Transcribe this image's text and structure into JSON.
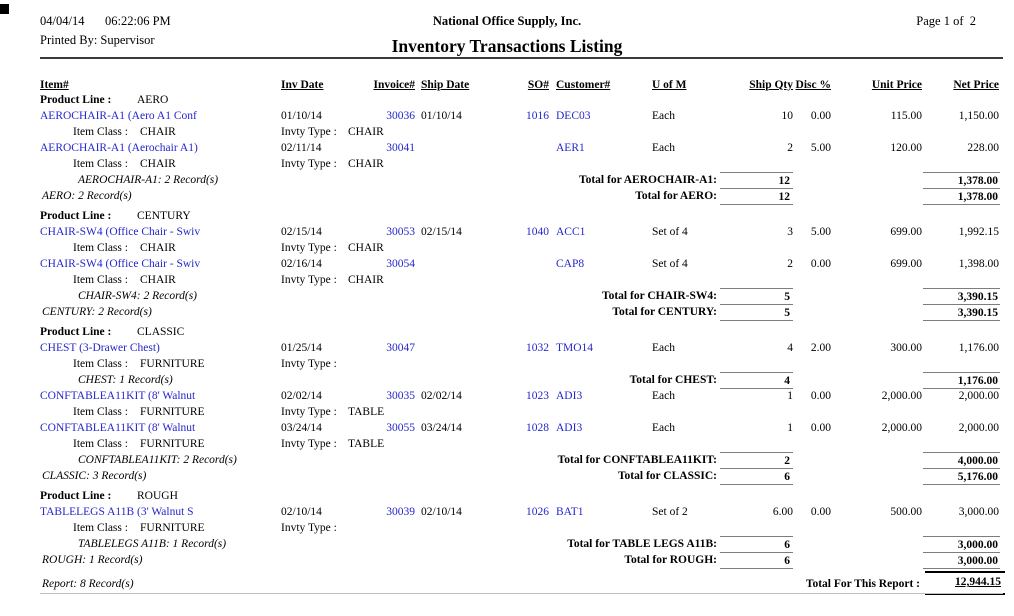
{
  "header": {
    "date": "04/04/14",
    "time": "06:22:06 PM",
    "printed_by": "Printed By: Supervisor",
    "company": "National Office Supply, Inc.",
    "page_label": "Page 1 of  2",
    "title": "Inventory Transactions Listing"
  },
  "columns": {
    "item": "Item#",
    "inv_date": "Inv Date",
    "invoice": "Invoice#",
    "ship_date": "Ship Date",
    "so": "SO#",
    "customer": "Customer#",
    "uom": "U of M",
    "ship_qty": "Ship Qty",
    "disc": "Disc %",
    "unit_price": "Unit Price",
    "net_price": "Net Price"
  },
  "lines": [
    {
      "type": "product_line",
      "label": "Product Line :",
      "value": "AERO"
    },
    {
      "type": "item",
      "item": "AEROCHAIR-A1 (Aero A1 Conf",
      "inv_date": "01/10/14",
      "invoice": "30036",
      "ship_date": "01/10/14",
      "so": "1016",
      "customer": "DEC03",
      "uom": "Each",
      "qty": "10",
      "disc": "0.00",
      "unit": "115.00",
      "net": "1,150.00"
    },
    {
      "type": "item_class",
      "class_label": "Item Class :",
      "class_value": "CHAIR",
      "invty_label": "Invty Type :",
      "invty_value": "CHAIR"
    },
    {
      "type": "item",
      "item": "AEROCHAIR-A1 (Aerochair A1)",
      "inv_date": "02/11/14",
      "invoice": "30041",
      "ship_date": "",
      "so": "",
      "customer": "AER1",
      "uom": "Each",
      "qty": "2",
      "disc": "5.00",
      "unit": "120.00",
      "net": "228.00"
    },
    {
      "type": "item_class",
      "class_label": "Item Class :",
      "class_value": "CHAIR",
      "invty_label": "Invty Type :",
      "invty_value": "CHAIR"
    },
    {
      "type": "total",
      "level": "item",
      "records": "AEROCHAIR-A1: 2 Record(s)",
      "label": "Total for AEROCHAIR-A1:",
      "qty": "12",
      "net": "1,378.00"
    },
    {
      "type": "total",
      "level": "group",
      "records": "AERO: 2 Record(s)",
      "label": "Total for AERO:",
      "qty": "12",
      "net": "1,378.00"
    },
    {
      "type": "product_line",
      "label": "Product Line :",
      "value": "CENTURY"
    },
    {
      "type": "item",
      "item": "CHAIR-SW4 (Office Chair - Swiv",
      "inv_date": "02/15/14",
      "invoice": "30053",
      "ship_date": "02/15/14",
      "so": "1040",
      "customer": "ACC1",
      "uom": "Set of 4",
      "qty": "3",
      "disc": "5.00",
      "unit": "699.00",
      "net": "1,992.15"
    },
    {
      "type": "item_class",
      "class_label": "Item Class :",
      "class_value": "CHAIR",
      "invty_label": "Invty Type :",
      "invty_value": "CHAIR"
    },
    {
      "type": "item",
      "item": "CHAIR-SW4 (Office Chair - Swiv",
      "inv_date": "02/16/14",
      "invoice": "30054",
      "ship_date": "",
      "so": "",
      "customer": "CAP8",
      "uom": "Set of 4",
      "qty": "2",
      "disc": "0.00",
      "unit": "699.00",
      "net": "1,398.00"
    },
    {
      "type": "item_class",
      "class_label": "Item Class :",
      "class_value": "CHAIR",
      "invty_label": "Invty Type :",
      "invty_value": "CHAIR"
    },
    {
      "type": "total",
      "level": "item",
      "records": "CHAIR-SW4: 2 Record(s)",
      "label": "Total for CHAIR-SW4:",
      "qty": "5",
      "net": "3,390.15"
    },
    {
      "type": "total",
      "level": "group",
      "records": "CENTURY: 2 Record(s)",
      "label": "Total for CENTURY:",
      "qty": "5",
      "net": "3,390.15"
    },
    {
      "type": "product_line",
      "label": "Product Line :",
      "value": "CLASSIC"
    },
    {
      "type": "item",
      "item": "CHEST (3-Drawer Chest)",
      "inv_date": "01/25/14",
      "invoice": "30047",
      "ship_date": "",
      "so": "1032",
      "customer": "TMO14",
      "uom": "Each",
      "qty": "4",
      "disc": "2.00",
      "unit": "300.00",
      "net": "1,176.00"
    },
    {
      "type": "item_class",
      "class_label": "Item Class :",
      "class_value": "FURNITURE",
      "invty_label": "Invty Type :",
      "invty_value": ""
    },
    {
      "type": "total",
      "level": "item",
      "records": "CHEST: 1 Record(s)",
      "label": "Total for CHEST:",
      "qty": "4",
      "net": "1,176.00"
    },
    {
      "type": "item",
      "item": "CONFTABLEA11KIT (8' Walnut",
      "inv_date": "02/02/14",
      "invoice": "30035",
      "ship_date": "02/02/14",
      "so": "1023",
      "customer": "ADI3",
      "uom": "Each",
      "qty": "1",
      "disc": "0.00",
      "unit": "2,000.00",
      "net": "2,000.00"
    },
    {
      "type": "item_class",
      "class_label": "Item Class :",
      "class_value": "FURNITURE",
      "invty_label": "Invty Type :",
      "invty_value": "TABLE"
    },
    {
      "type": "item",
      "item": "CONFTABLEA11KIT (8' Walnut",
      "inv_date": "03/24/14",
      "invoice": "30055",
      "ship_date": "03/24/14",
      "so": "1028",
      "customer": "ADI3",
      "uom": "Each",
      "qty": "1",
      "disc": "0.00",
      "unit": "2,000.00",
      "net": "2,000.00"
    },
    {
      "type": "item_class",
      "class_label": "Item Class :",
      "class_value": "FURNITURE",
      "invty_label": "Invty Type :",
      "invty_value": "TABLE"
    },
    {
      "type": "total",
      "level": "item",
      "records": "CONFTABLEA11KIT: 2 Record(s)",
      "label": "Total for CONFTABLEA11KIT:",
      "qty": "2",
      "net": "4,000.00"
    },
    {
      "type": "total",
      "level": "group",
      "records": "CLASSIC: 3 Record(s)",
      "label": "Total for CLASSIC:",
      "qty": "6",
      "net": "5,176.00"
    },
    {
      "type": "product_line",
      "label": "Product Line :",
      "value": "ROUGH"
    },
    {
      "type": "item",
      "item": "TABLELEGS A11B (3' Walnut S",
      "inv_date": "02/10/14",
      "invoice": "30039",
      "ship_date": "02/10/14",
      "so": "1026",
      "customer": "BAT1",
      "uom": "Set of 2",
      "qty": "6.00",
      "disc": "0.00",
      "unit": "500.00",
      "net": "3,000.00"
    },
    {
      "type": "item_class",
      "class_label": "Item Class :",
      "class_value": "FURNITURE",
      "invty_label": "Invty Type :",
      "invty_value": ""
    },
    {
      "type": "total",
      "level": "item",
      "records": "TABLELEGS A11B: 1 Record(s)",
      "label": "Total for TABLE LEGS A11B:",
      "qty": "6",
      "net": "3,000.00"
    },
    {
      "type": "total",
      "level": "group",
      "records": "ROUGH: 1 Record(s)",
      "label": "Total for ROUGH:",
      "qty": "6",
      "net": "3,000.00"
    }
  ],
  "footer": {
    "records": "Report: 8 Record(s)",
    "total_label": "Total For This Report :",
    "total_value": "12,944.15"
  },
  "colors": {
    "link_blue": "#2626cc",
    "header_rule": "#3a3a3a",
    "total_rule": "#7d7d7d"
  }
}
